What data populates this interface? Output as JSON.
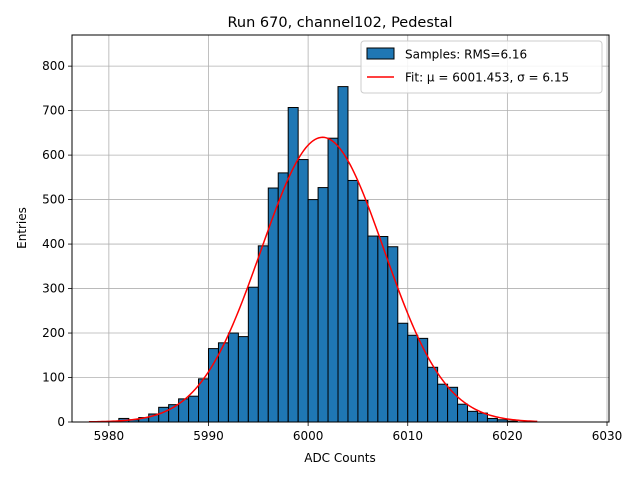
{
  "chart_data": {
    "type": "bar",
    "title": "Run 670, channel102, Pedestal",
    "xlabel": "ADC Counts",
    "ylabel": "Entries",
    "xlim": [
      5976.3,
      6030.2
    ],
    "ylim": [
      0,
      870
    ],
    "xticks": [
      5980,
      5990,
      6000,
      6010,
      6020,
      6030
    ],
    "yticks": [
      0,
      100,
      200,
      300,
      400,
      500,
      600,
      700,
      800
    ],
    "grid": true,
    "legend_position": "top-right",
    "bin_width": 1,
    "bin_start": 5980,
    "values": [
      0,
      8,
      5,
      10,
      18,
      33,
      39,
      52,
      58,
      97,
      165,
      178,
      200,
      192,
      303,
      396,
      526,
      560,
      707,
      590,
      500,
      527,
      638,
      754,
      543,
      498,
      418,
      417,
      394,
      222,
      195,
      188,
      123,
      85,
      78,
      40,
      24,
      20,
      8,
      5,
      2
    ],
    "series": [
      {
        "name": "Samples: RMS=6.16",
        "kind": "histogram",
        "color": "#1f77b4",
        "edge": "#000000"
      },
      {
        "name": "Fit: μ = 6001.453, σ = 6.15",
        "kind": "line",
        "color": "#ff0000",
        "mu": 6001.453,
        "sigma": 6.15,
        "amplitude": 640,
        "x_range": [
          5978,
          6023
        ]
      }
    ]
  }
}
